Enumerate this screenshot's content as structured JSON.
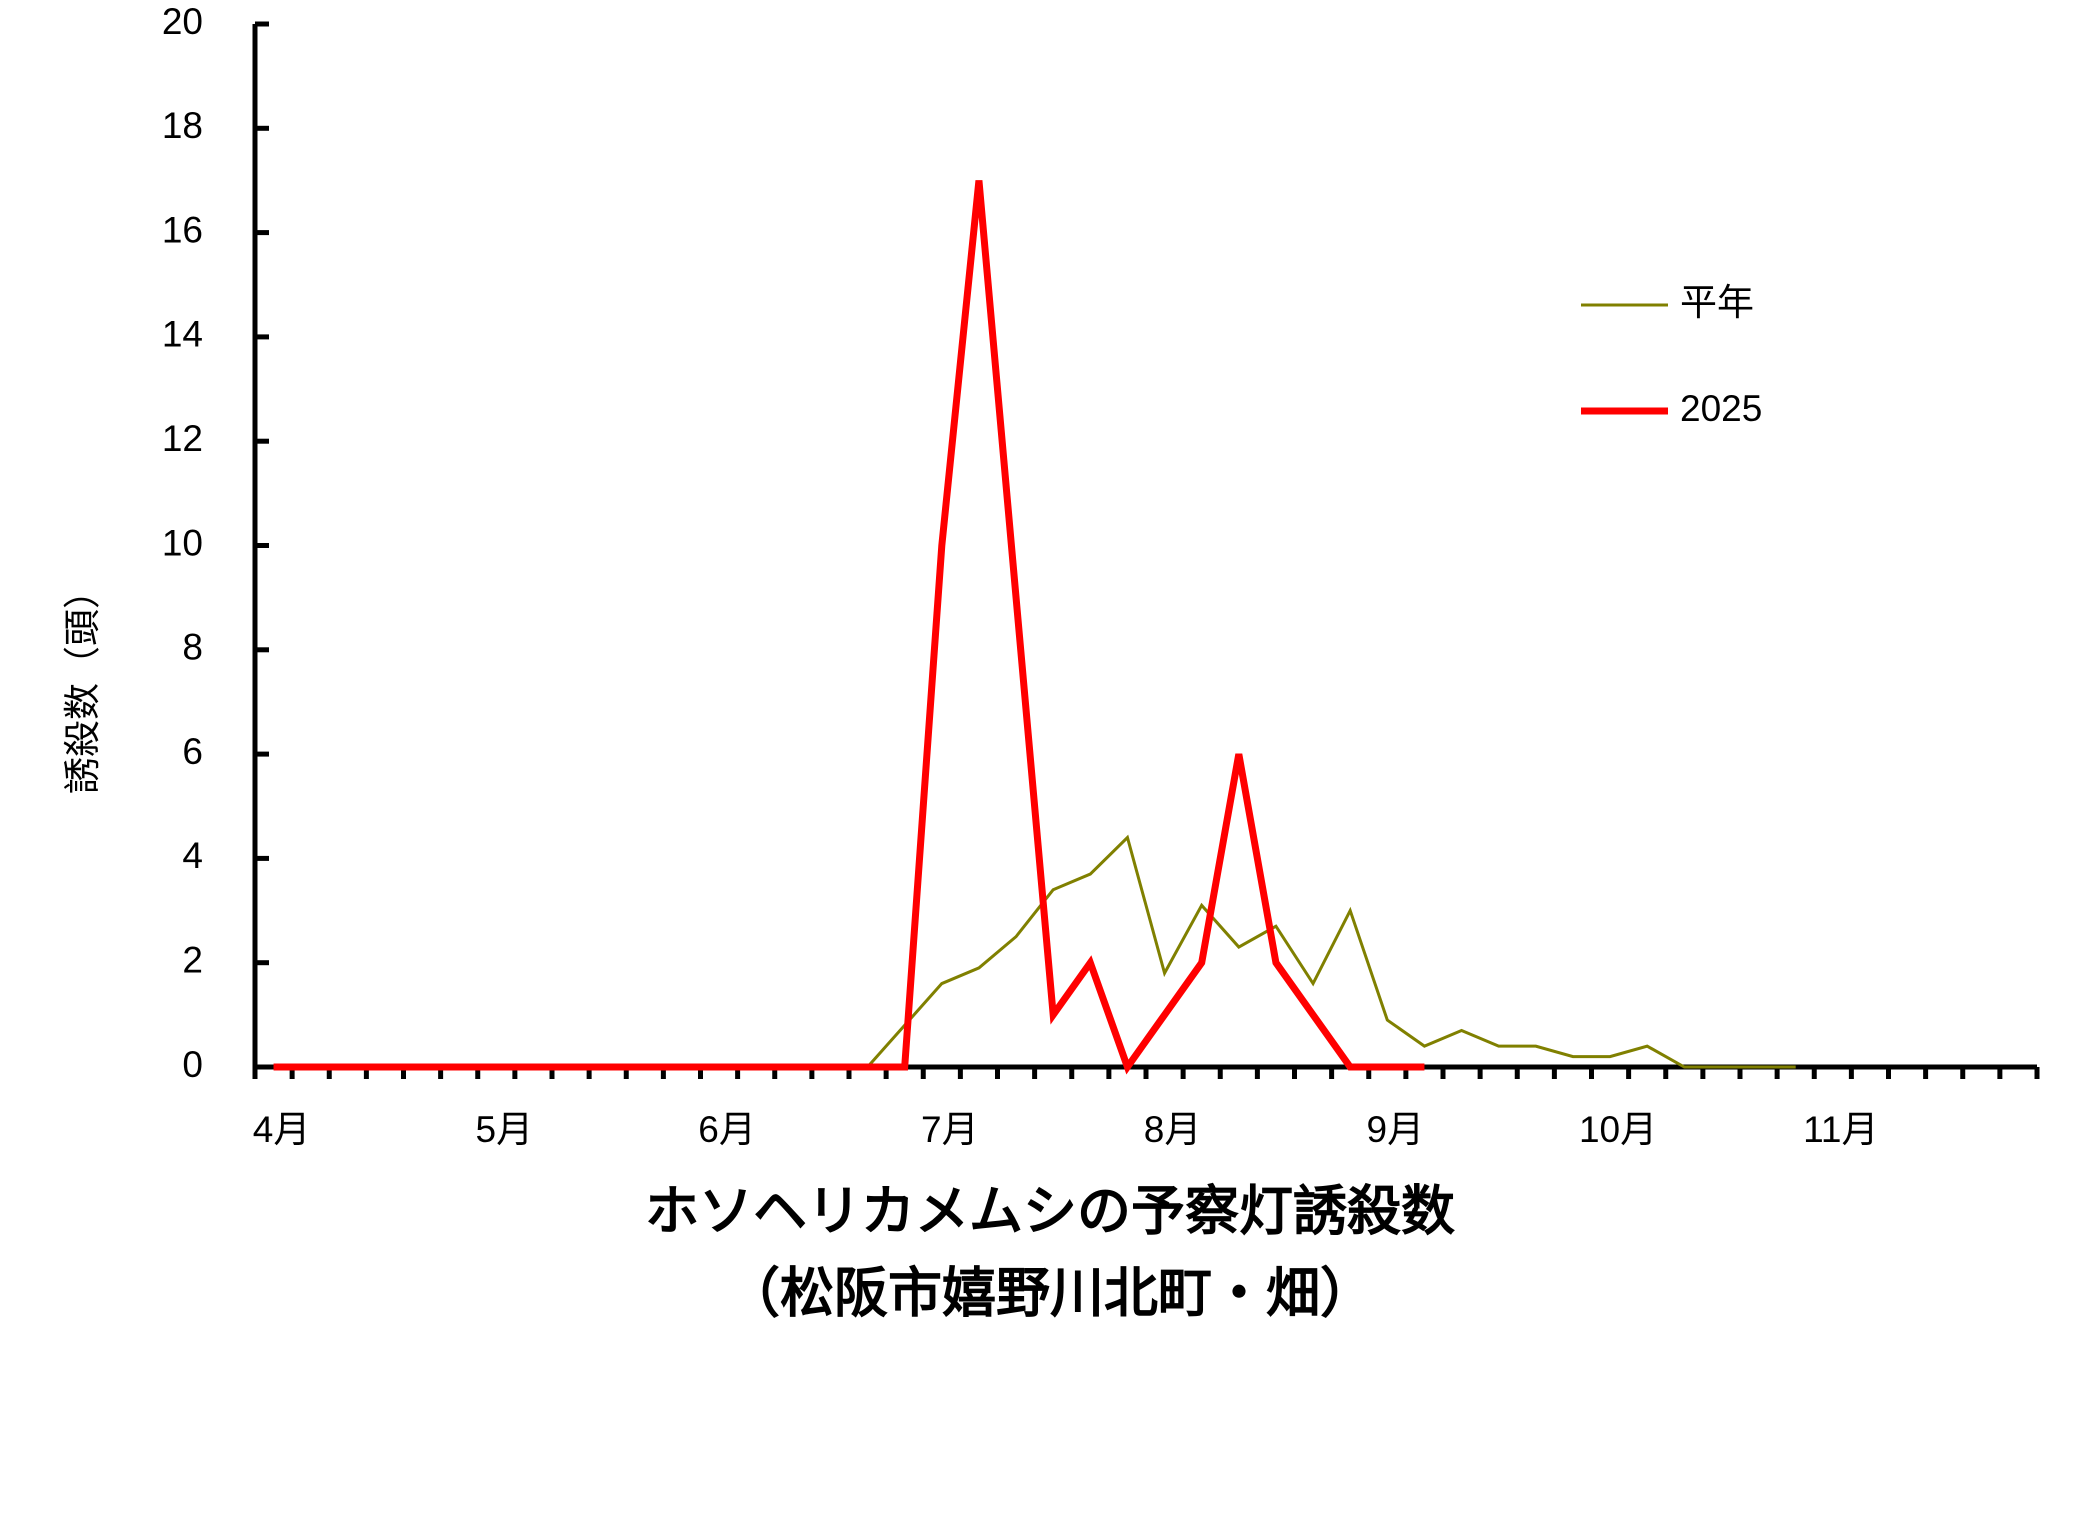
{
  "chart_data": {
    "type": "line",
    "title": "ホソヘリカメムシの予察灯誘殺数",
    "subtitle": "（松阪市嬉野川北町・畑）",
    "y_label": "誘殺数（頭）",
    "categories": [
      "4月",
      null,
      null,
      null,
      null,
      null,
      "5月",
      null,
      null,
      null,
      null,
      null,
      "6月",
      null,
      null,
      null,
      null,
      null,
      "7月",
      null,
      null,
      null,
      null,
      null,
      "8月",
      null,
      null,
      null,
      null,
      null,
      "9月",
      null,
      null,
      null,
      null,
      null,
      "10月",
      null,
      null,
      null,
      null,
      null,
      "11月",
      null,
      null,
      null,
      null,
      null
    ],
    "series": [
      {
        "name": "平年",
        "color": "#808000",
        "width": 3,
        "values": [
          0,
          0,
          0,
          0,
          0,
          0,
          0,
          0,
          0,
          0,
          0,
          0,
          0,
          0,
          0,
          0,
          0,
          0.8,
          1.6,
          1.9,
          2.5,
          3.4,
          3.7,
          4.4,
          1.8,
          3.1,
          2.3,
          2.7,
          1.6,
          3.0,
          0.9,
          0.4,
          0.7,
          0.4,
          0.4,
          0.2,
          0.2,
          0.4,
          0,
          0,
          0,
          0,
          null,
          null,
          null,
          null,
          null,
          null
        ]
      },
      {
        "name": "2025",
        "color": "#ff0000",
        "width": 7,
        "values": [
          0,
          0,
          0,
          0,
          0,
          0,
          0,
          0,
          0,
          0,
          0,
          0,
          0,
          0,
          0,
          0,
          0,
          0,
          10,
          17,
          9,
          1,
          2,
          0,
          1,
          2,
          6,
          2,
          1,
          0,
          0,
          0,
          null,
          null,
          null,
          null,
          null,
          null,
          null,
          null,
          null,
          null,
          null,
          null,
          null,
          null,
          null,
          null
        ]
      }
    ],
    "ylim": [
      0,
      20
    ],
    "yticks": [
      0,
      2,
      4,
      6,
      8,
      10,
      12,
      14,
      16,
      18,
      20
    ]
  }
}
